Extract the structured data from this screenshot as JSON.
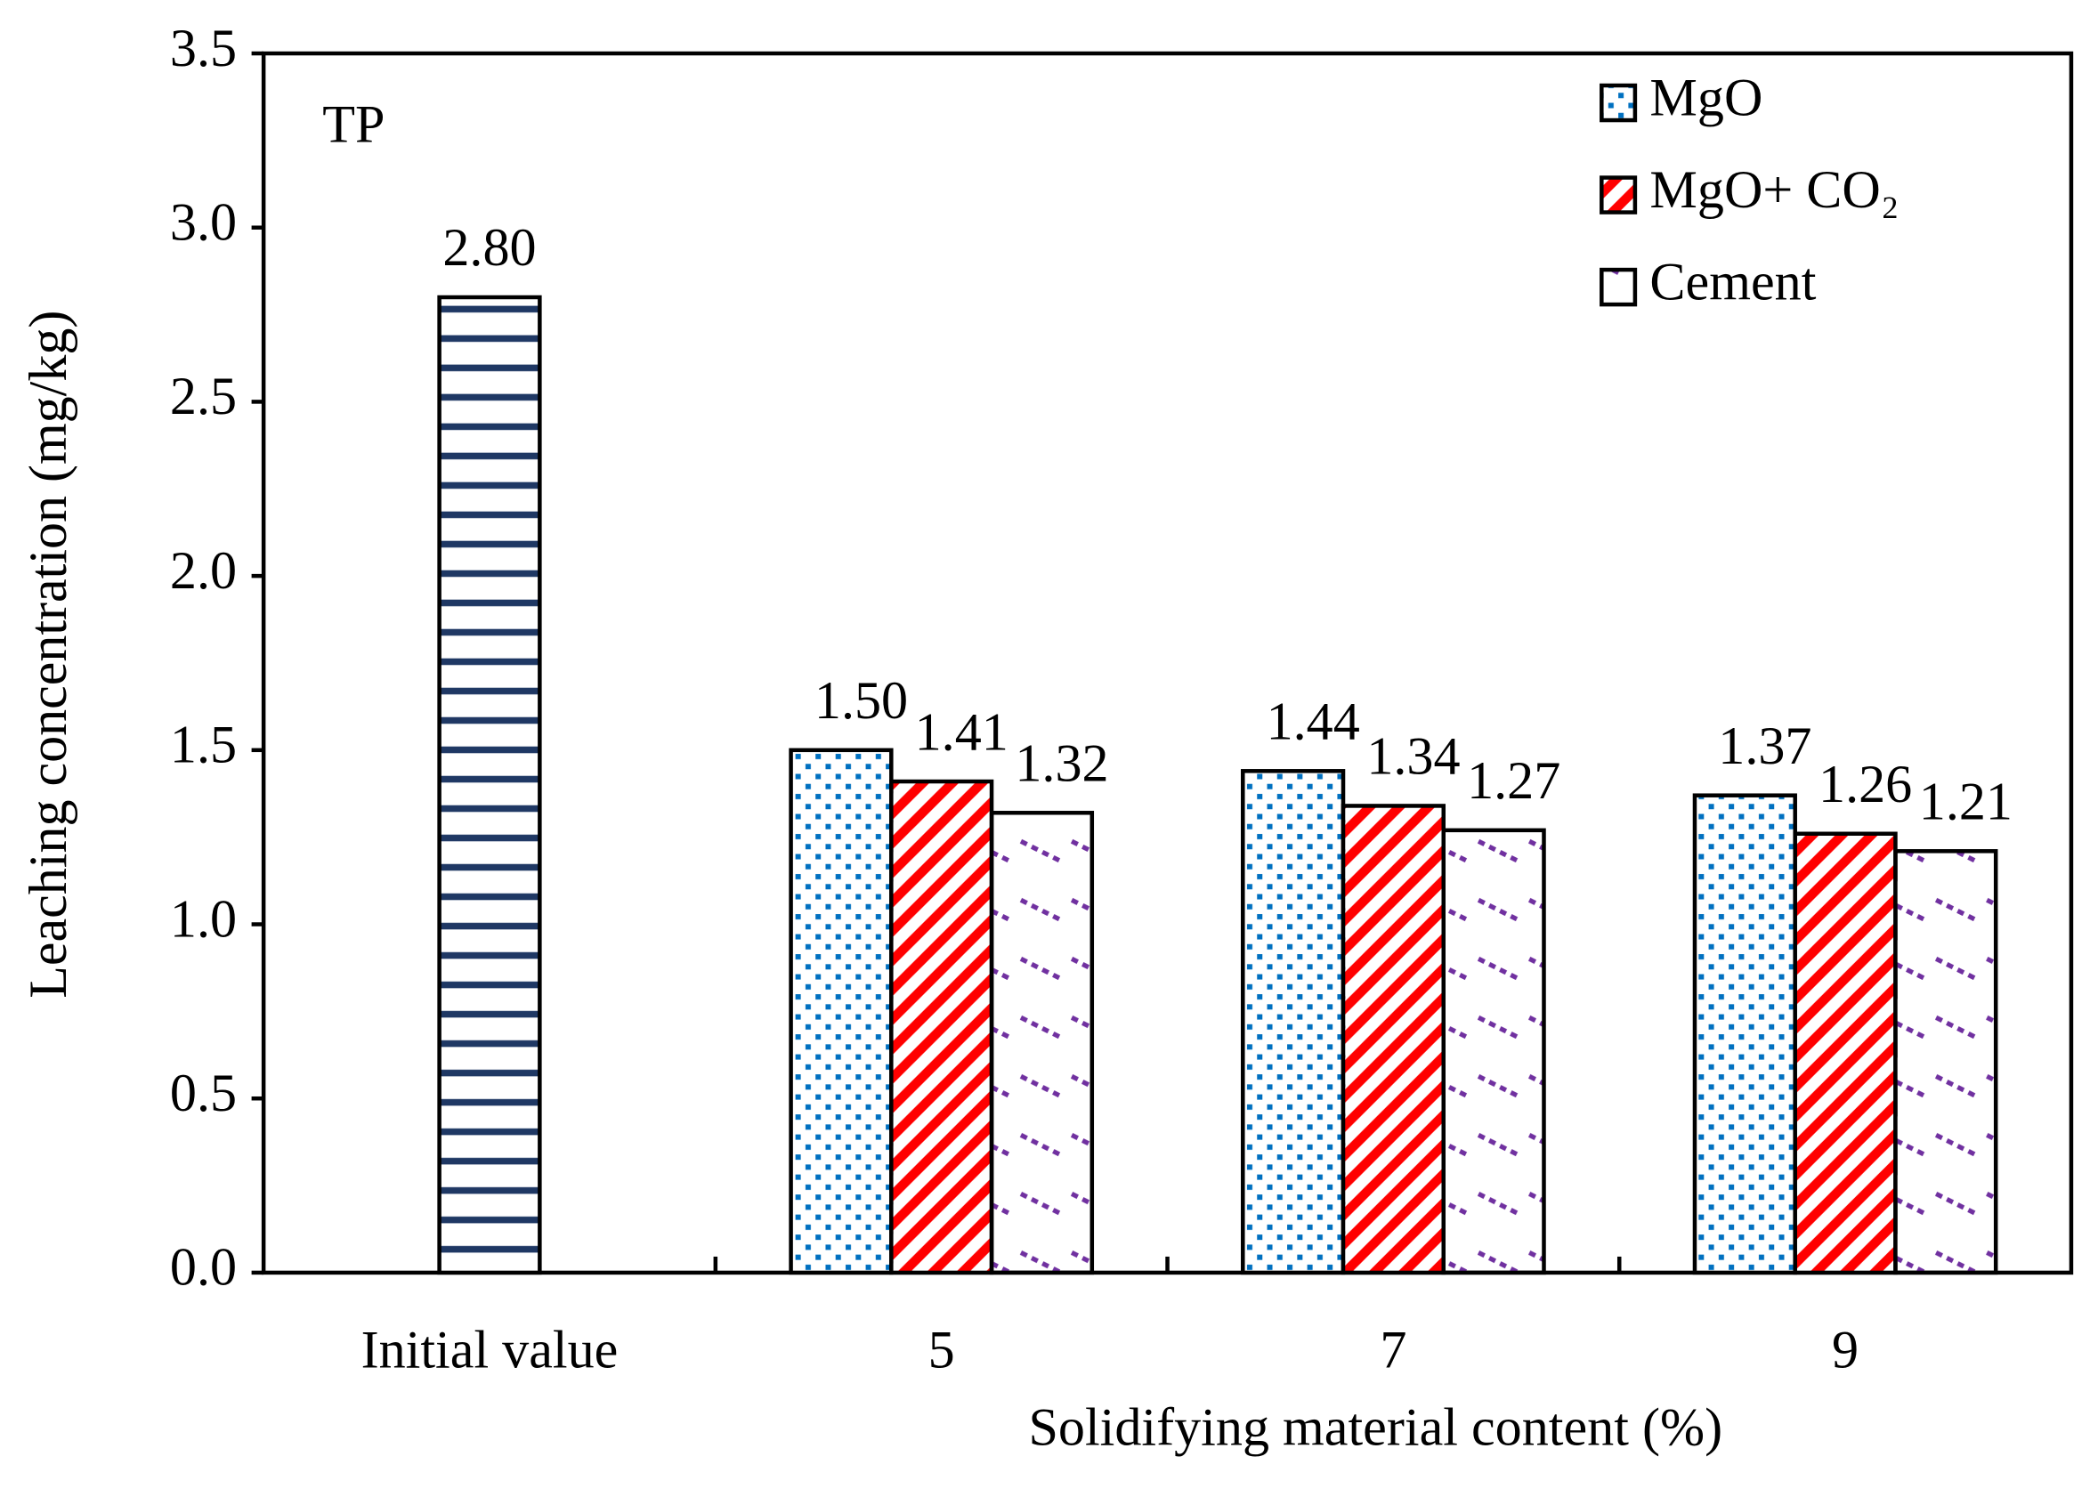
{
  "chart_data": {
    "type": "bar",
    "annotation": "TP",
    "x_label": "Solidifying material content (%)",
    "y_label": "Leaching concentration (mg/kg)",
    "categories": [
      "Initial value",
      "5",
      "7",
      "9"
    ],
    "series": [
      {
        "color": "#1f3864",
        "pattern": "hstripe",
        "values": [
          2.8,
          null,
          null,
          null
        ],
        "value_labels": [
          "2.80",
          null,
          null,
          null
        ]
      },
      {
        "name": "MgO",
        "color": "#0070c0",
        "pattern": "dots",
        "values": [
          null,
          1.5,
          1.44,
          1.37
        ],
        "value_labels": [
          null,
          "1.50",
          "1.44",
          "1.37"
        ]
      },
      {
        "name": "MgO+ CO₂",
        "color": "#ff0000",
        "pattern": "diag",
        "values": [
          null,
          1.41,
          1.34,
          1.26
        ],
        "value_labels": [
          null,
          "1.41",
          "1.34",
          "1.26"
        ]
      },
      {
        "name": "Cement",
        "color": "#7030a0",
        "pattern": "dash",
        "values": [
          null,
          1.32,
          1.27,
          1.21
        ],
        "value_labels": [
          null,
          "1.32",
          "1.27",
          "1.21"
        ]
      }
    ],
    "ylim": [
      0,
      3.5
    ],
    "yticks": [
      {
        "value": 0,
        "label": "0.0"
      },
      0.5,
      {
        "value": 1,
        "label": "1.0"
      },
      1.5,
      {
        "value": 2,
        "label": "2.0"
      },
      2.5,
      {
        "value": 3,
        "label": "3.0"
      },
      3.5
    ],
    "legend": "upper right",
    "grid": false
  }
}
